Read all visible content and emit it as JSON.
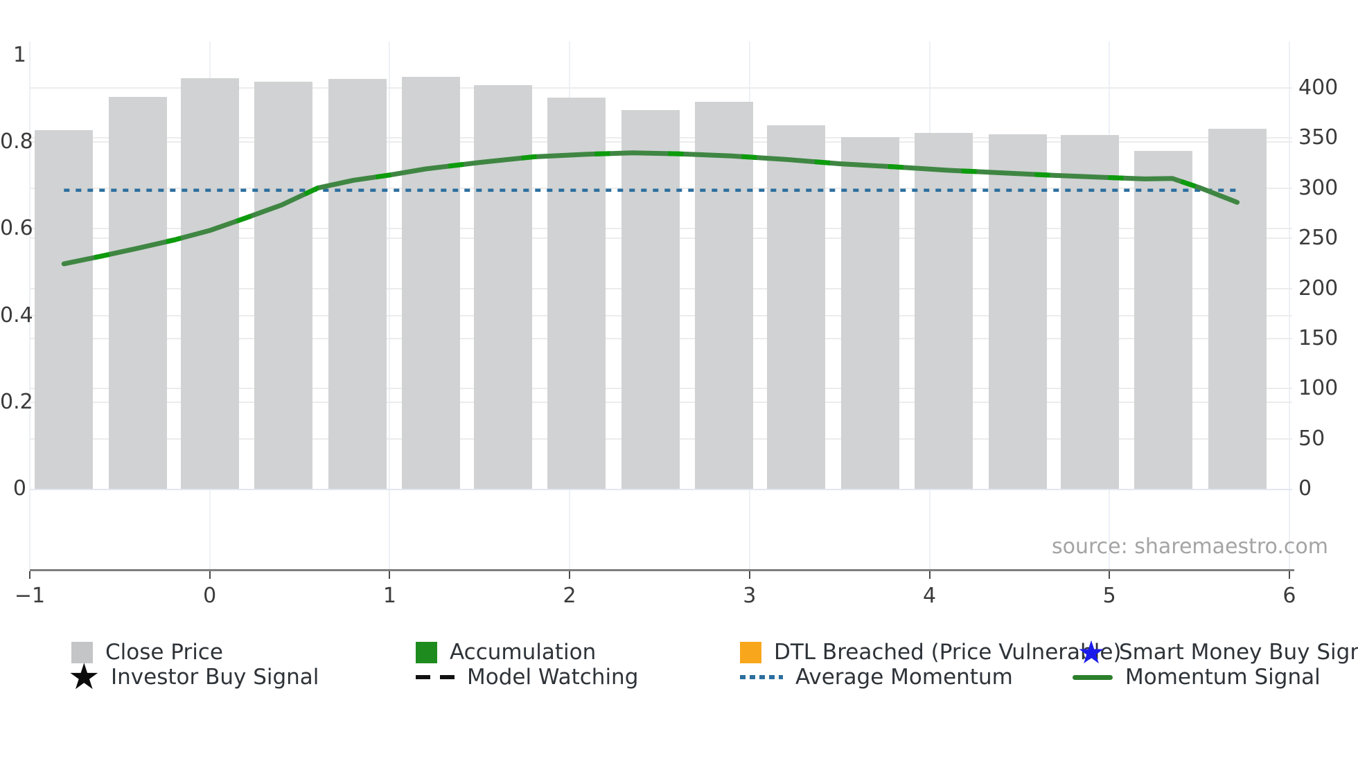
{
  "source": {
    "text": "source: sharemaestro.com"
  },
  "legend": {
    "items": [
      {
        "label": "Close Price",
        "swatch": "square",
        "color": "#c3c5c7"
      },
      {
        "label": "Accumulation",
        "swatch": "square",
        "color": "#1e8b1e"
      },
      {
        "label": "DTL Breached (Price Vulnerable)",
        "swatch": "square",
        "color": "#f8a61c"
      },
      {
        "label": "Smart Money Buy Signal",
        "swatch": "star",
        "color": "#1b1beb"
      },
      {
        "label": "Investor Buy Signal",
        "swatch": "star",
        "color": "#0c0c0c"
      },
      {
        "label": "Model Watching",
        "swatch": "dashes",
        "color": "#111111"
      },
      {
        "label": "Average Momentum",
        "swatch": "dots",
        "color": "#2c6e9e"
      },
      {
        "label": "Momentum Signal",
        "swatch": "line",
        "color": "#2c7f2c"
      }
    ]
  },
  "chart_data": {
    "type": "bar+line",
    "x_axis": {
      "range": [
        -1,
        6
      ],
      "ticks": [
        {
          "label": "−1",
          "value": -1
        },
        {
          "label": "0",
          "value": 0
        },
        {
          "label": "1",
          "value": 1
        },
        {
          "label": "2",
          "value": 2
        },
        {
          "label": "3",
          "value": 3
        },
        {
          "label": "4",
          "value": 4
        },
        {
          "label": "5",
          "value": 5
        },
        {
          "label": "6",
          "value": 6
        }
      ]
    },
    "y_left_axis": {
      "ticks": [
        {
          "label": "0",
          "value": 0
        },
        {
          "label": "0.2",
          "value": 0.2
        },
        {
          "label": "0.4",
          "value": 0.4
        },
        {
          "label": "0.6",
          "value": 0.6
        },
        {
          "label": "0.8",
          "value": 0.8
        },
        {
          "label": "1",
          "value": 1
        }
      ]
    },
    "y_right_axis": {
      "ticks": [
        {
          "label": "0",
          "value": 0
        },
        {
          "label": "50",
          "value": 50
        },
        {
          "label": "100",
          "value": 100
        },
        {
          "label": "150",
          "value": 150
        },
        {
          "label": "200",
          "value": 200
        },
        {
          "label": "250",
          "value": 250
        },
        {
          "label": "300",
          "value": 300
        },
        {
          "label": "350",
          "value": 350
        },
        {
          "label": "400",
          "value": 400
        }
      ]
    },
    "close_price_bars": {
      "name": "Close Price",
      "axis": "right",
      "color": "#d0d2d3",
      "x": [
        -0.81,
        -0.4,
        0.0,
        0.41,
        0.82,
        1.23,
        1.63,
        2.04,
        2.45,
        2.86,
        3.26,
        3.67,
        4.08,
        4.49,
        4.89,
        5.3,
        5.71
      ],
      "values": [
        358,
        391,
        410,
        406,
        409,
        411,
        403,
        390,
        378,
        386,
        363,
        351,
        355,
        354,
        353,
        337,
        359
      ]
    },
    "momentum_signal": {
      "name": "Momentum Signal",
      "axis": "left",
      "color": "#3f8643",
      "accent_color": "#0c9b0c",
      "points": [
        [
          -0.81,
          0.519
        ],
        [
          -0.6,
          0.537
        ],
        [
          -0.4,
          0.555
        ],
        [
          -0.2,
          0.574
        ],
        [
          0.0,
          0.596
        ],
        [
          0.2,
          0.625
        ],
        [
          0.4,
          0.655
        ],
        [
          0.6,
          0.694
        ],
        [
          0.8,
          0.712
        ],
        [
          1.0,
          0.724
        ],
        [
          1.2,
          0.738
        ],
        [
          1.5,
          0.753
        ],
        [
          1.8,
          0.766
        ],
        [
          2.1,
          0.772
        ],
        [
          2.35,
          0.775
        ],
        [
          2.6,
          0.773
        ],
        [
          2.9,
          0.768
        ],
        [
          3.2,
          0.76
        ],
        [
          3.5,
          0.75
        ],
        [
          3.8,
          0.743
        ],
        [
          4.1,
          0.735
        ],
        [
          4.4,
          0.729
        ],
        [
          4.7,
          0.723
        ],
        [
          5.0,
          0.718
        ],
        [
          5.2,
          0.715
        ],
        [
          5.35,
          0.716
        ],
        [
          5.5,
          0.695
        ],
        [
          5.71,
          0.661
        ]
      ]
    },
    "average_momentum": {
      "name": "Average Momentum",
      "axis": "left",
      "color": "#2c6e9e",
      "value": 0.689,
      "x_start": -0.81,
      "x_end": 5.71
    }
  }
}
